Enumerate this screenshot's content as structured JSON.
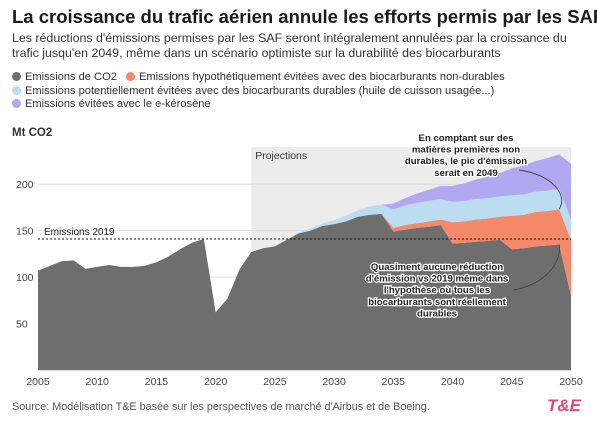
{
  "title": "La croissance du trafic aérien annule les efforts permis par les SAF",
  "subtitle": "Les réductions d'émissions permises par les SAF seront intégralement annulées par la croissance du trafic jusqu'en 2049, même dans un scénario optimiste sur la durabilité des biocarburants",
  "legend": [
    {
      "label": "Emissions de CO2",
      "color": "#6e6e6e"
    },
    {
      "label": "Emissions hypothétiquement évitées avec des biocarburants non-durables",
      "color": "#f4896b"
    },
    {
      "label": "Emissions potentiellement évitées avec des biocarburants durables (huile de cuisson usagée...)",
      "color": "#bcdcf0"
    },
    {
      "label": "Emissions évitées avec le e-kérosène",
      "color": "#b2a8f2"
    }
  ],
  "unit_label": "Mt CO2",
  "source": "Source: Modélisation T&E basée sur les perspectives de marché d'Airbus et de Boeing.",
  "logo": "T&E",
  "chart_data": {
    "type": "area",
    "x": [
      2005,
      2006,
      2007,
      2008,
      2009,
      2010,
      2011,
      2012,
      2013,
      2014,
      2015,
      2016,
      2017,
      2018,
      2019,
      2020,
      2021,
      2022,
      2023,
      2024,
      2025,
      2026,
      2027,
      2028,
      2029,
      2030,
      2031,
      2032,
      2033,
      2034,
      2035,
      2036,
      2037,
      2038,
      2039,
      2040,
      2041,
      2042,
      2043,
      2044,
      2045,
      2046,
      2047,
      2048,
      2049,
      2050
    ],
    "xlim": [
      2005,
      2050
    ],
    "ylim": [
      0,
      240
    ],
    "xticks": [
      2005,
      2010,
      2015,
      2020,
      2025,
      2030,
      2035,
      2040,
      2045,
      2050
    ],
    "yticks": [
      50,
      100,
      150,
      200
    ],
    "series": [
      {
        "name": "Emissions de CO2",
        "color": "#6e6e6e",
        "values": [
          107,
          112,
          117,
          118,
          109,
          111,
          113,
          111,
          111,
          112,
          116,
          122,
          130,
          137,
          141,
          62,
          77,
          108,
          127,
          131,
          133,
          140,
          147,
          150,
          155,
          157,
          160,
          165,
          167,
          168,
          149,
          151,
          153,
          154,
          156,
          136,
          137,
          138,
          139,
          140,
          130,
          131,
          133,
          134,
          135,
          80
        ]
      },
      {
        "name": "Emissions hypothétiquement évitées avec des biocarburants non-durables",
        "color": "#f4896b",
        "values": [
          0,
          0,
          0,
          0,
          0,
          0,
          0,
          0,
          0,
          0,
          0,
          0,
          0,
          0,
          0,
          0,
          0,
          0,
          0,
          0,
          0,
          0,
          0,
          0,
          0,
          0,
          0,
          0,
          0,
          0,
          4,
          5,
          5,
          6,
          6,
          23,
          23,
          24,
          24,
          25,
          36,
          36,
          37,
          37,
          38,
          60
        ]
      },
      {
        "name": "Emissions potentiellement évitées avec des biocarburants durables (huile de cuisson usagée...)",
        "color": "#bcdcf0",
        "values": [
          0,
          0,
          0,
          0,
          0,
          0,
          0,
          0,
          0,
          0,
          0,
          0,
          0,
          0,
          0,
          0,
          0,
          0,
          0,
          0,
          0,
          0,
          1,
          2,
          3,
          4,
          6,
          7,
          9,
          10,
          20,
          21,
          22,
          22,
          22,
          22,
          22,
          22,
          22,
          22,
          22,
          22,
          22,
          22,
          22,
          22
        ]
      },
      {
        "name": "Emissions évitées avec le e-kérosène",
        "color": "#b2a8f2",
        "values": [
          0,
          0,
          0,
          0,
          0,
          0,
          0,
          0,
          0,
          0,
          0,
          0,
          0,
          0,
          0,
          0,
          0,
          0,
          0,
          0,
          0,
          0,
          0,
          0,
          0,
          0,
          0,
          0,
          0,
          0,
          6,
          8,
          10,
          12,
          14,
          17,
          19,
          21,
          23,
          25,
          29,
          31,
          33,
          35,
          37,
          60
        ]
      }
    ],
    "reference_line": {
      "label": "Emissions 2019",
      "value": 141
    },
    "projection_start": 2023,
    "projection_label": "Projections",
    "annotations": [
      {
        "text": [
          "En comptant sur des",
          "matières premières non",
          "durables, le pic d'émission",
          "serait en 2049"
        ],
        "x": 2049,
        "y": 173
      },
      {
        "text": [
          "Quasiment aucune réduction",
          "d'émission vs 2019 même dans",
          "l'hypothèse où tous les",
          "biocarburants sont réellement",
          "durables"
        ],
        "x": 2049,
        "y": 135
      }
    ],
    "grid": true
  }
}
